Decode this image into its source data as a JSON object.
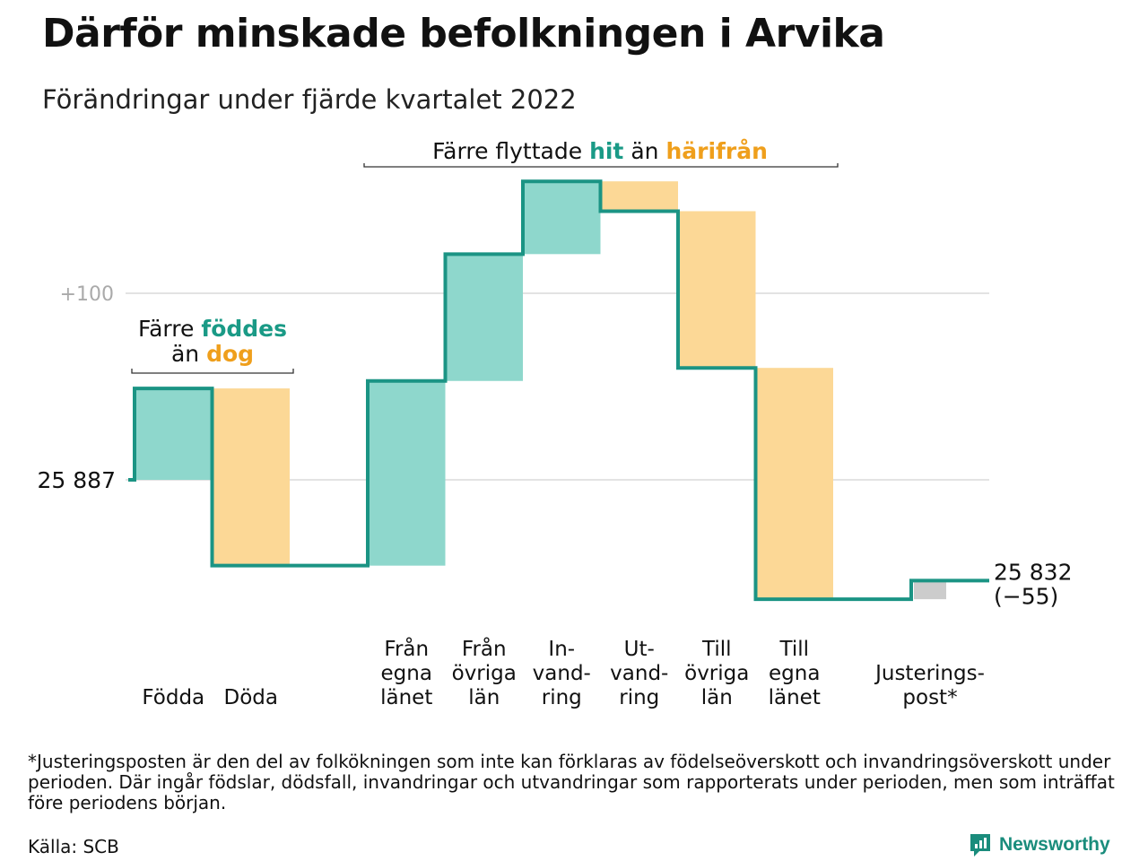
{
  "title": "Därför minskade befolkningen i Arvika",
  "subtitle": "Förändringar under fjärde kvartalet 2022",
  "colors": {
    "inflow": "#8ed7cc",
    "outflow": "#fcd896",
    "adjust": "#cccccc",
    "line": "#1b9484",
    "accent_in": "#1a9a86",
    "accent_out": "#ef9f1c"
  },
  "chart_data": {
    "type": "waterfall",
    "start": {
      "value": 25887,
      "label": "25 887"
    },
    "end": {
      "value": 25832,
      "label": "25 832",
      "change_label": "(−55)"
    },
    "yticks": [
      {
        "value": 25987,
        "label": "+100"
      }
    ],
    "grid": true,
    "steps": [
      {
        "label_lines": [
          "Födda"
        ],
        "change": 49,
        "kind": "in"
      },
      {
        "label_lines": [
          "Döda"
        ],
        "change": -95,
        "kind": "out"
      },
      {
        "label_lines": [
          "Från",
          "egna",
          "länet"
        ],
        "change": 99,
        "kind": "in"
      },
      {
        "label_lines": [
          "Från",
          "övriga",
          "län"
        ],
        "change": 68,
        "kind": "in"
      },
      {
        "label_lines": [
          "In-",
          "vand-",
          "ring"
        ],
        "change": 39,
        "kind": "in"
      },
      {
        "label_lines": [
          "Ut-",
          "vand-",
          "ring"
        ],
        "change": -16,
        "kind": "out"
      },
      {
        "label_lines": [
          "Till",
          "övriga",
          "län"
        ],
        "change": -84,
        "kind": "out"
      },
      {
        "label_lines": [
          "Till",
          "egna",
          "länet"
        ],
        "change": -124,
        "kind": "out"
      },
      {
        "label_lines": [
          "Justerings-",
          "post*"
        ],
        "change": 10,
        "kind": "adjust"
      }
    ],
    "annotations": [
      {
        "id": "births",
        "parts": [
          {
            "text": "Färre ",
            "style": "plain"
          },
          {
            "text": "föddes",
            "style": "in"
          }
        ],
        "parts2": [
          {
            "text": "än ",
            "style": "plain"
          },
          {
            "text": "dog",
            "style": "out"
          }
        ]
      },
      {
        "id": "migration",
        "parts": [
          {
            "text": "Färre flyttade ",
            "style": "plain"
          },
          {
            "text": "hit",
            "style": "in"
          },
          {
            "text": " än ",
            "style": "plain"
          },
          {
            "text": "härifrån",
            "style": "out"
          }
        ]
      }
    ]
  },
  "footnote": "*Justeringsposten är den del av folkökningen som inte kan förklaras av födelseöverskott och invandringsöverskott under perioden. Där ingår födslar, dödsfall, invandringar och utvandringar som rapporterats under perioden, men som inträffat före periodens början.",
  "source": "Källa: SCB",
  "brand": {
    "name": "Newsworthy",
    "icon": "newsworthy-logo-icon"
  }
}
